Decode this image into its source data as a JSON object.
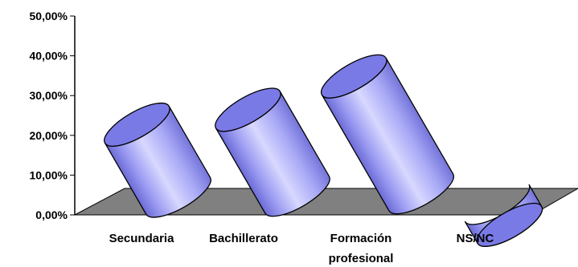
{
  "chart_data": {
    "type": "bar",
    "style": "3d-cylinder",
    "title": "",
    "xlabel": "",
    "ylabel": "",
    "categories": [
      [
        "Secundaria"
      ],
      [
        "Bachillerato"
      ],
      [
        "Formación",
        "profesional"
      ],
      [
        "NS/NC"
      ]
    ],
    "values": [
      27.5,
      31.5,
      40.5,
      0.5
    ],
    "ylim": [
      0,
      50
    ],
    "yticks": [
      "0,00%",
      "10,00%",
      "20,00%",
      "30,00%",
      "40,00%",
      "50,00%"
    ],
    "grid": false,
    "legend": "none",
    "colors": {
      "bar_light": "#d8d8ff",
      "bar_mid": "#9999ff",
      "bar_dark": "#6b6bd6",
      "bar_top": "#7a7ae6",
      "floor": "#808080",
      "outline": "#000000"
    }
  }
}
